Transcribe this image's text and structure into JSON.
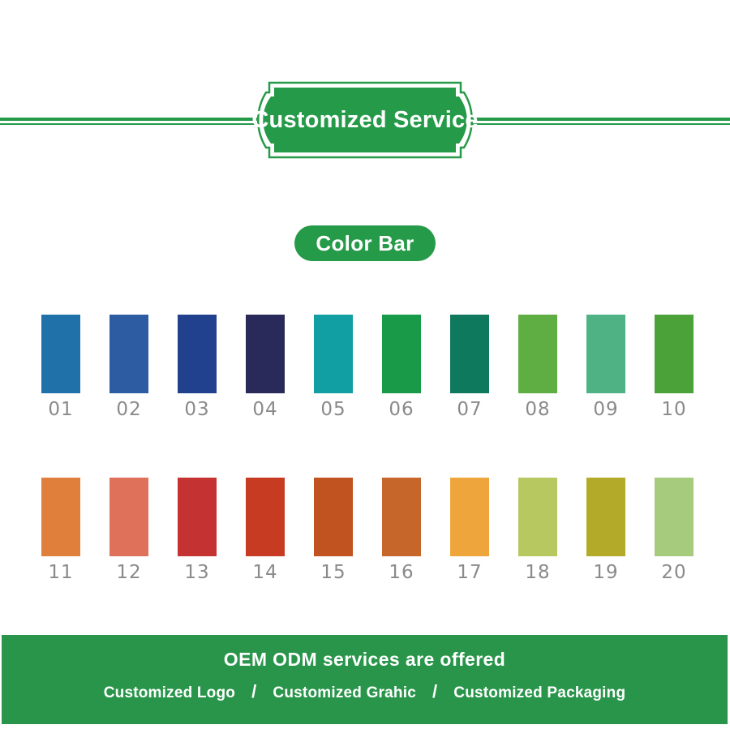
{
  "header": {
    "badge_label": "Customized Service",
    "accent_color": "#259a48"
  },
  "section": {
    "title": "Color Bar"
  },
  "swatch_rows": [
    {
      "items": [
        {
          "num": "01",
          "color": "#2071a9"
        },
        {
          "num": "02",
          "color": "#2e5ca3"
        },
        {
          "num": "03",
          "color": "#21418e"
        },
        {
          "num": "04",
          "color": "#292a5a"
        },
        {
          "num": "05",
          "color": "#129fa3"
        },
        {
          "num": "06",
          "color": "#189a49"
        },
        {
          "num": "07",
          "color": "#0e795c"
        },
        {
          "num": "08",
          "color": "#5fae43"
        },
        {
          "num": "09",
          "color": "#4eb285"
        },
        {
          "num": "10",
          "color": "#4aa238"
        }
      ]
    },
    {
      "items": [
        {
          "num": "11",
          "color": "#e07f3c"
        },
        {
          "num": "12",
          "color": "#df715a"
        },
        {
          "num": "13",
          "color": "#c43331"
        },
        {
          "num": "14",
          "color": "#c73b23"
        },
        {
          "num": "15",
          "color": "#c0531f"
        },
        {
          "num": "16",
          "color": "#c7662b"
        },
        {
          "num": "17",
          "color": "#eea53b"
        },
        {
          "num": "18",
          "color": "#b6c85f"
        },
        {
          "num": "19",
          "color": "#b2aa28"
        },
        {
          "num": "20",
          "color": "#a6cb7d"
        }
      ]
    }
  ],
  "footer": {
    "background_color": "#28954a",
    "headline": "OEM ODM services are offered",
    "separator": "/",
    "items": [
      "Customized Logo",
      "Customized Grahic",
      "Customized Packaging"
    ]
  }
}
